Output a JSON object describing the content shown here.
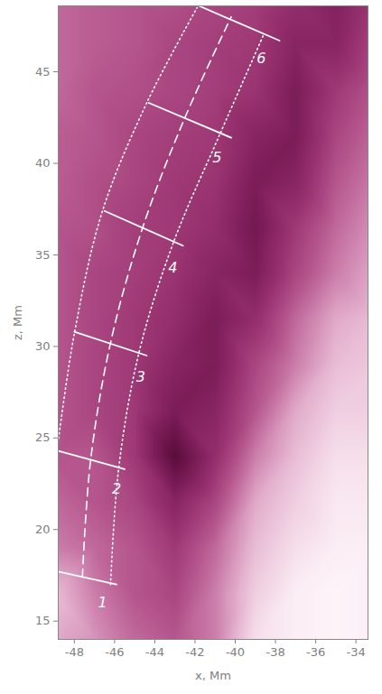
{
  "chart_data": {
    "type": "image",
    "xlabel": "x, Mm",
    "ylabel": "z, Mm",
    "xlim": [
      -48.8,
      -33.4
    ],
    "ylim": [
      14,
      48.6
    ],
    "xticks": [
      -48,
      -46,
      -44,
      -42,
      -40,
      -38,
      -36,
      -34
    ],
    "yticks": [
      15,
      20,
      25,
      30,
      35,
      40,
      45
    ],
    "color": "#ffffff",
    "image": {
      "x": [
        -49,
        -47,
        -45,
        -43,
        -41,
        -39,
        -37,
        -35,
        -33
      ],
      "z": [
        14,
        16.5,
        19,
        21.5,
        24,
        26.5,
        29,
        31.5,
        34,
        36.5,
        39,
        41.5,
        44,
        46.5,
        49
      ],
      "values": [
        [
          0.7,
          0.65,
          0.55,
          0.5,
          0.6,
          0.85,
          0.9,
          0.92,
          0.9
        ],
        [
          0.75,
          0.6,
          0.5,
          0.45,
          0.6,
          0.8,
          0.9,
          0.92,
          0.9
        ],
        [
          0.6,
          0.55,
          0.5,
          0.4,
          0.55,
          0.75,
          0.85,
          0.9,
          0.9
        ],
        [
          0.55,
          0.5,
          0.45,
          0.3,
          0.45,
          0.7,
          0.8,
          0.88,
          0.88
        ],
        [
          0.5,
          0.5,
          0.4,
          0.12,
          0.35,
          0.6,
          0.75,
          0.85,
          0.85
        ],
        [
          0.5,
          0.45,
          0.4,
          0.25,
          0.3,
          0.5,
          0.7,
          0.8,
          0.8
        ],
        [
          0.5,
          0.45,
          0.4,
          0.3,
          0.25,
          0.45,
          0.6,
          0.75,
          0.78
        ],
        [
          0.5,
          0.45,
          0.4,
          0.35,
          0.25,
          0.35,
          0.55,
          0.7,
          0.75
        ],
        [
          0.5,
          0.45,
          0.42,
          0.38,
          0.3,
          0.25,
          0.45,
          0.6,
          0.7
        ],
        [
          0.5,
          0.48,
          0.42,
          0.4,
          0.35,
          0.22,
          0.4,
          0.55,
          0.65
        ],
        [
          0.52,
          0.48,
          0.45,
          0.4,
          0.38,
          0.25,
          0.3,
          0.5,
          0.6
        ],
        [
          0.52,
          0.5,
          0.45,
          0.42,
          0.4,
          0.3,
          0.25,
          0.45,
          0.55
        ],
        [
          0.55,
          0.5,
          0.48,
          0.45,
          0.42,
          0.38,
          0.25,
          0.4,
          0.5
        ],
        [
          0.55,
          0.52,
          0.5,
          0.45,
          0.42,
          0.4,
          0.3,
          0.3,
          0.45
        ],
        [
          0.55,
          0.52,
          0.5,
          0.48,
          0.45,
          0.42,
          0.35,
          0.28,
          0.4
        ]
      ]
    },
    "curves": [
      {
        "line_style": "dashed",
        "x": [
          -47.6,
          -47.2,
          -46.2,
          -44.6,
          -42.5,
          -40.2
        ],
        "z": [
          17.4,
          23.7,
          30.2,
          36.5,
          42.5,
          48.0
        ]
      },
      {
        "line_style": "dotted",
        "x": [
          -48.9,
          -48.0,
          -46.6,
          -44.4,
          -41.9
        ],
        "z": [
          24.0,
          30.7,
          37.4,
          43.3,
          48.5
        ]
      },
      {
        "line_style": "dotted",
        "x": [
          -46.2,
          -45.8,
          -44.8,
          -43.1,
          -40.8,
          -38.6
        ],
        "z": [
          17.0,
          23.3,
          29.6,
          35.6,
          41.5,
          47.0
        ]
      }
    ],
    "sections": [
      {
        "label": "1",
        "x": [
          -48.8,
          -45.9
        ],
        "z": [
          17.7,
          17.0
        ],
        "label_x": -46.6,
        "label_z": 16.0
      },
      {
        "label": "2",
        "x": [
          -48.8,
          -45.5
        ],
        "z": [
          24.3,
          23.3
        ],
        "label_x": -45.9,
        "label_z": 22.2
      },
      {
        "label": "3",
        "x": [
          -48.0,
          -44.4
        ],
        "z": [
          30.8,
          29.5
        ],
        "label_x": -44.7,
        "label_z": 28.3
      },
      {
        "label": "4",
        "x": [
          -46.5,
          -42.6
        ],
        "z": [
          37.4,
          35.5
        ],
        "label_x": -43.1,
        "label_z": 34.3
      },
      {
        "label": "5",
        "x": [
          -44.3,
          -40.2
        ],
        "z": [
          43.3,
          41.4
        ],
        "label_x": -40.9,
        "label_z": 40.3
      },
      {
        "label": "6",
        "x": [
          -41.8,
          -37.8
        ],
        "z": [
          48.6,
          46.7
        ],
        "label_x": -38.7,
        "label_z": 45.7
      }
    ]
  }
}
